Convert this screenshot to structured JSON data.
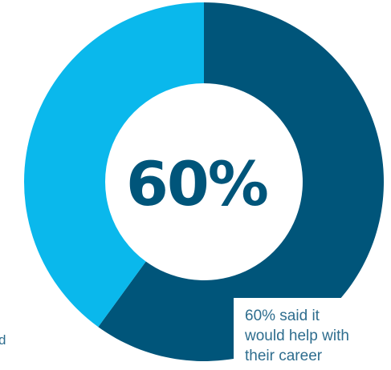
{
  "colors": {
    "primary": "#00557a",
    "secondary": "#0ab8ec",
    "text": "#2e6d8e"
  },
  "chart_data": {
    "type": "pie",
    "style": "donut",
    "values": [
      60,
      40
    ],
    "center_label": "60%"
  },
  "callout": {
    "line1": "60% said it",
    "line2": "would help with",
    "line3": "their career"
  },
  "left_caption": "d"
}
